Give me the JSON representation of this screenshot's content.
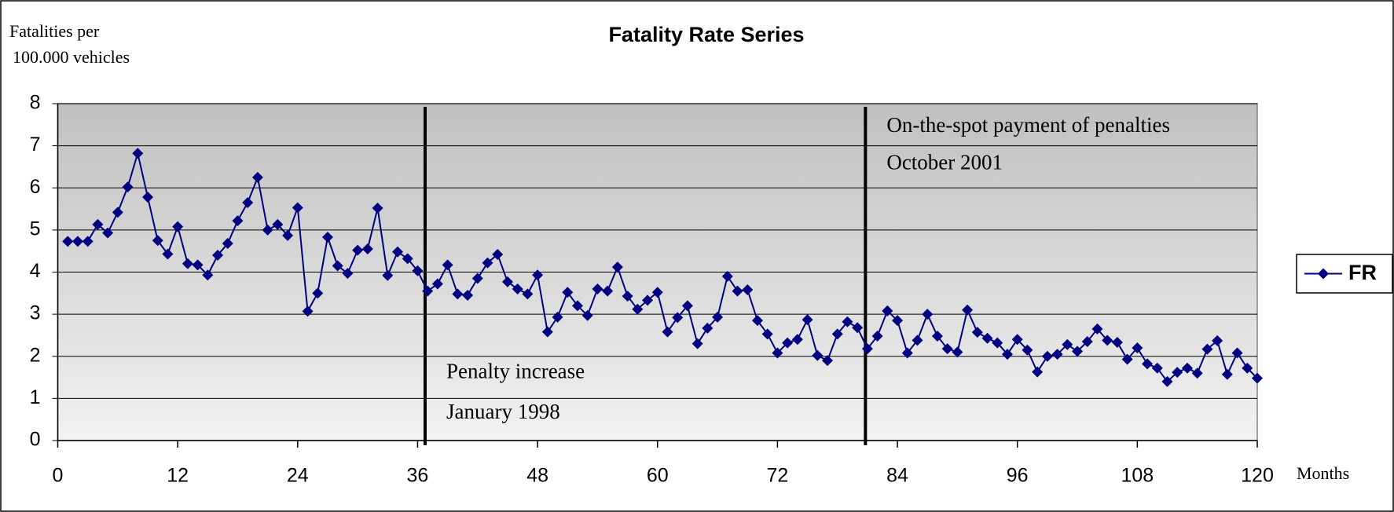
{
  "chart_data": {
    "type": "line",
    "title": "Fatality Rate Series",
    "y_label": [
      "Fatalities per",
      "100.000 vehicles"
    ],
    "x_label": "Months",
    "x": [
      1,
      2,
      3,
      4,
      5,
      6,
      7,
      8,
      9,
      10,
      11,
      12,
      13,
      14,
      15,
      16,
      17,
      18,
      19,
      20,
      21,
      22,
      23,
      24,
      25,
      26,
      27,
      28,
      29,
      30,
      31,
      32,
      33,
      34,
      35,
      36,
      37,
      38,
      39,
      40,
      41,
      42,
      43,
      44,
      45,
      46,
      47,
      48,
      49,
      50,
      51,
      52,
      53,
      54,
      55,
      56,
      57,
      58,
      59,
      60,
      61,
      62,
      63,
      64,
      65,
      66,
      67,
      68,
      69,
      70,
      71,
      72,
      73,
      74,
      75,
      76,
      77,
      78,
      79,
      80,
      81,
      82,
      83,
      84,
      85,
      86,
      87,
      88,
      89,
      90,
      91,
      92,
      93,
      94,
      95,
      96,
      97,
      98,
      99,
      100,
      101,
      102,
      103,
      104,
      105,
      106,
      107,
      108,
      109,
      110,
      111,
      112,
      113,
      114,
      115,
      116,
      117,
      118,
      119,
      120
    ],
    "series": [
      {
        "name": "FR",
        "color": "#000080",
        "values": [
          4.73,
          4.73,
          4.73,
          5.13,
          4.93,
          5.42,
          6.02,
          6.82,
          5.78,
          4.75,
          4.43,
          5.08,
          4.2,
          4.17,
          3.93,
          4.4,
          4.68,
          5.22,
          5.65,
          6.25,
          5.0,
          5.13,
          4.87,
          5.53,
          3.07,
          3.5,
          4.83,
          4.15,
          3.97,
          4.52,
          4.55,
          5.52,
          3.92,
          4.48,
          4.32,
          4.03,
          3.55,
          3.72,
          4.17,
          3.48,
          3.45,
          3.85,
          4.22,
          4.42,
          3.77,
          3.6,
          3.48,
          3.93,
          2.58,
          2.93,
          3.52,
          3.2,
          2.97,
          3.6,
          3.55,
          4.12,
          3.43,
          3.12,
          3.33,
          3.52,
          2.58,
          2.92,
          3.2,
          2.3,
          2.67,
          2.93,
          3.9,
          3.55,
          3.58,
          2.85,
          2.53,
          2.08,
          2.32,
          2.4,
          2.87,
          2.02,
          1.9,
          2.53,
          2.82,
          2.68,
          2.18,
          2.48,
          3.08,
          2.85,
          2.08,
          2.38,
          3.0,
          2.48,
          2.18,
          2.1,
          3.1,
          2.57,
          2.43,
          2.32,
          2.05,
          2.4,
          2.15,
          1.63,
          2.0,
          2.05,
          2.28,
          2.12,
          2.35,
          2.65,
          2.38,
          2.33,
          1.93,
          2.2,
          1.82,
          1.72,
          1.4,
          1.62,
          1.72,
          1.6,
          2.17,
          2.37,
          1.57,
          2.08,
          1.72,
          1.48
        ]
      }
    ],
    "events": [
      {
        "x": 36.75,
        "label": [
          "Penalty increase",
          "January 1998"
        ]
      },
      {
        "x": 80.8,
        "label": [
          "On-the-spot payment of penalties",
          "October 2001"
        ]
      }
    ],
    "xlim": [
      0,
      120
    ],
    "xticks": [
      0,
      12,
      24,
      36,
      48,
      60,
      72,
      84,
      96,
      108,
      120
    ],
    "ylim": [
      0,
      8
    ],
    "yticks": [
      0,
      1,
      2,
      3,
      4,
      5,
      6,
      7,
      8
    ],
    "grid": true,
    "legend": "right"
  }
}
